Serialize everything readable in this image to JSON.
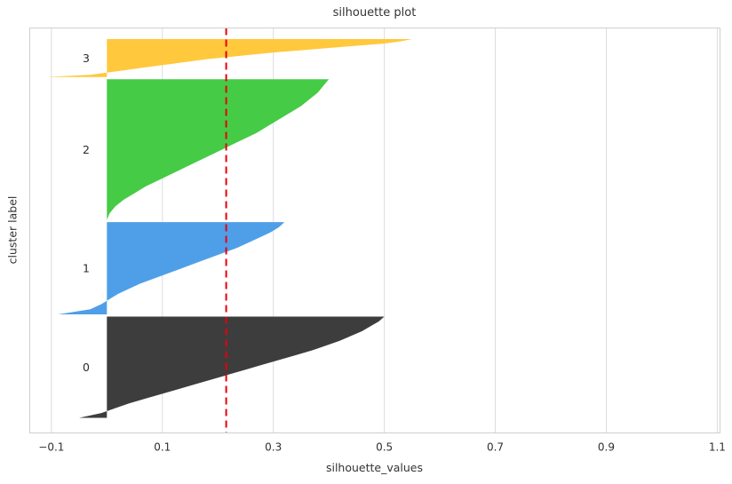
{
  "chart_data": {
    "type": "area",
    "title": "silhouette plot",
    "xlabel": "silhouette_values",
    "ylabel": "cluster label",
    "x_range": [
      -0.139,
      1.105
    ],
    "xticks": [
      -0.1,
      0.1,
      0.3,
      0.5,
      0.7,
      0.9,
      1.1
    ],
    "xtick_labels": [
      "−0.1",
      "0.1",
      "0.3",
      "0.5",
      "0.7",
      "0.9",
      "1.1"
    ],
    "grid": true,
    "grid_color": "#dcdcdc",
    "border_color": "#cfcfcf",
    "tick_text_color": "#303030",
    "cluster_label_color": "#2b2b2b",
    "avg_silhouette": 0.215,
    "avg_line_color": "#e8000b",
    "legend": "none",
    "clusters": [
      {
        "label": "3",
        "color": "#ffc83d",
        "weight": 0.102,
        "max_value": 0.55,
        "min_value": -0.11,
        "profile": [
          0.55,
          0.53,
          0.5,
          0.45,
          0.4,
          0.35,
          0.3,
          0.26,
          0.22,
          0.18,
          0.15,
          0.12,
          0.09,
          0.06,
          0.03,
          0.0,
          -0.03,
          -0.11
        ]
      },
      {
        "label": "2",
        "color": "#45cb45",
        "weight": 0.378,
        "max_value": 0.4,
        "min_value": 0.0,
        "profile": [
          0.4,
          0.39,
          0.38,
          0.365,
          0.35,
          0.33,
          0.31,
          0.29,
          0.27,
          0.245,
          0.22,
          0.195,
          0.17,
          0.145,
          0.12,
          0.095,
          0.07,
          0.05,
          0.03,
          0.015,
          0.005,
          0.0
        ]
      },
      {
        "label": "1",
        "color": "#4f9fe8",
        "weight": 0.248,
        "max_value": 0.32,
        "min_value": -0.088,
        "profile": [
          0.32,
          0.31,
          0.295,
          0.275,
          0.255,
          0.235,
          0.21,
          0.185,
          0.16,
          0.135,
          0.11,
          0.085,
          0.06,
          0.04,
          0.02,
          0.005,
          -0.01,
          -0.03,
          -0.088
        ]
      },
      {
        "label": "0",
        "color": "#3d3d3d",
        "weight": 0.272,
        "max_value": 0.5,
        "min_value": -0.05,
        "profile": [
          0.5,
          0.49,
          0.475,
          0.46,
          0.44,
          0.42,
          0.395,
          0.37,
          0.34,
          0.31,
          0.28,
          0.25,
          0.22,
          0.19,
          0.16,
          0.13,
          0.1,
          0.07,
          0.04,
          0.015,
          -0.01,
          -0.05
        ]
      }
    ]
  }
}
